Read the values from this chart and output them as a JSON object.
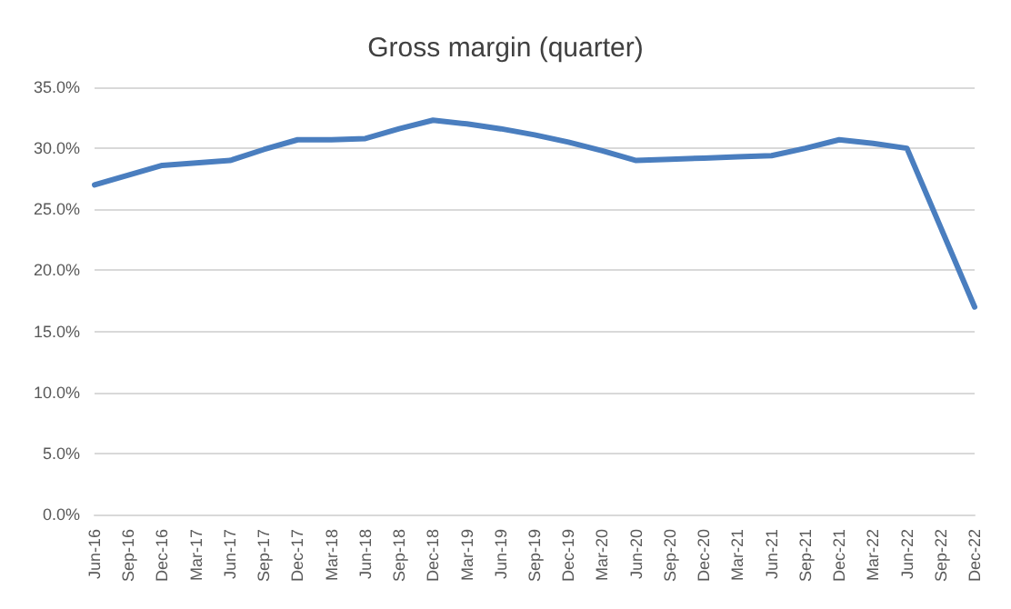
{
  "chart_data": {
    "type": "line",
    "title": "Gross margin (quarter)",
    "categories": [
      "Jun-16",
      "Sep-16",
      "Dec-16",
      "Mar-17",
      "Jun-17",
      "Sep-17",
      "Dec-17",
      "Mar-18",
      "Jun-18",
      "Sep-18",
      "Dec-18",
      "Mar-19",
      "Jun-19",
      "Sep-19",
      "Dec-19",
      "Mar-20",
      "Jun-20",
      "Sep-20",
      "Dec-20",
      "Mar-21",
      "Jun-21",
      "Sep-21",
      "Dec-21",
      "Mar-22",
      "Jun-22",
      "Sep-22",
      "Dec-22"
    ],
    "series": [
      {
        "color": "#4a7ebf",
        "values": [
          27.0,
          27.8,
          28.6,
          28.8,
          29.0,
          29.9,
          30.7,
          30.7,
          30.8,
          31.6,
          32.3,
          32.0,
          31.6,
          31.1,
          30.5,
          29.8,
          29.0,
          29.1,
          29.2,
          29.3,
          29.4,
          30.0,
          30.7,
          30.4,
          30.0,
          23.5,
          17.0
        ]
      }
    ],
    "ylim": [
      0,
      35
    ],
    "yticks": [
      {
        "value": 0,
        "label": "0.0%"
      },
      {
        "value": 5,
        "label": "5.0%"
      },
      {
        "value": 10,
        "label": "10.0%"
      },
      {
        "value": 15,
        "label": "15.0%"
      },
      {
        "value": 20,
        "label": "20.0%"
      },
      {
        "value": 25,
        "label": "25.0%"
      },
      {
        "value": 30,
        "label": "30.0%"
      },
      {
        "value": 35,
        "label": "35.0%"
      }
    ],
    "grid": "y",
    "marker": "none",
    "line_style": "solid"
  }
}
